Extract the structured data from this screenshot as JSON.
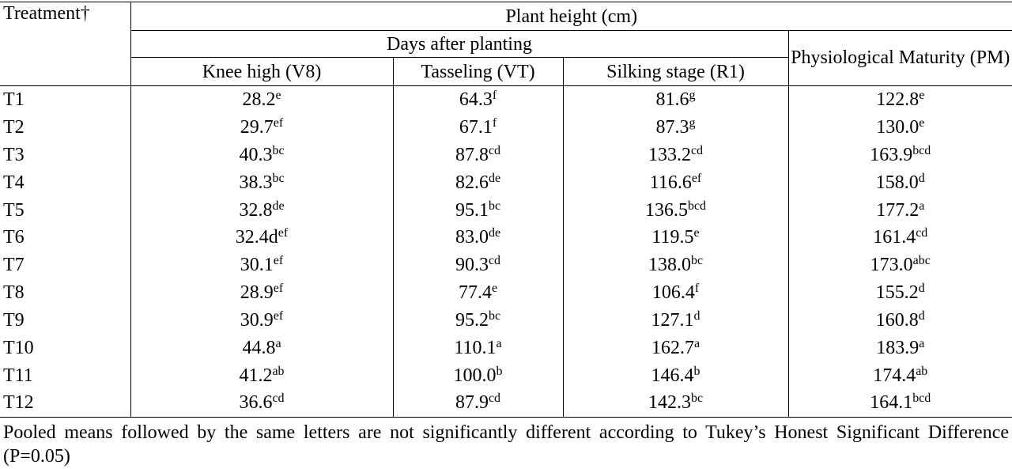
{
  "table": {
    "header": {
      "treatment": "Treatment†",
      "plant_height": "Plant height (cm)",
      "days_after_planting": "Days after planting",
      "columns": [
        "Knee high (V8)",
        "Tasseling (VT)",
        "Silking stage (R1)"
      ],
      "maturity": "Physiological Maturity (PM)"
    },
    "rows": [
      {
        "label": "T1",
        "cells": [
          [
            "28.2",
            "e"
          ],
          [
            "64.3",
            "f"
          ],
          [
            "81.6",
            "g"
          ],
          [
            "122.8",
            "e"
          ]
        ]
      },
      {
        "label": "T2",
        "cells": [
          [
            "29.7",
            "ef"
          ],
          [
            "67.1",
            "f"
          ],
          [
            "87.3",
            "g"
          ],
          [
            "130.0",
            "e"
          ]
        ]
      },
      {
        "label": "T3",
        "cells": [
          [
            "40.3",
            "bc"
          ],
          [
            "87.8",
            "cd"
          ],
          [
            "133.2",
            "cd"
          ],
          [
            "163.9",
            "bcd"
          ]
        ]
      },
      {
        "label": "T4",
        "cells": [
          [
            "38.3",
            "bc"
          ],
          [
            "82.6",
            "de"
          ],
          [
            "116.6",
            "ef"
          ],
          [
            "158.0",
            "d"
          ]
        ]
      },
      {
        "label": "T5",
        "cells": [
          [
            "32.8",
            "de"
          ],
          [
            "95.1",
            "bc"
          ],
          [
            "136.5",
            "bcd"
          ],
          [
            "177.2",
            "a"
          ]
        ]
      },
      {
        "label": "T6",
        "cells": [
          [
            "32.4d",
            "ef"
          ],
          [
            "83.0",
            "de"
          ],
          [
            "119.5",
            "e"
          ],
          [
            "161.4",
            "cd"
          ]
        ]
      },
      {
        "label": "T7",
        "cells": [
          [
            "30.1",
            "ef"
          ],
          [
            "90.3",
            "cd"
          ],
          [
            "138.0",
            "bc"
          ],
          [
            "173.0",
            "abc"
          ]
        ]
      },
      {
        "label": "T8",
        "cells": [
          [
            "28.9",
            "ef"
          ],
          [
            "77.4",
            "e"
          ],
          [
            "106.4",
            "f"
          ],
          [
            "155.2",
            "d"
          ]
        ]
      },
      {
        "label": "T9",
        "cells": [
          [
            "30.9",
            "ef"
          ],
          [
            "95.2",
            "bc"
          ],
          [
            "127.1",
            "d"
          ],
          [
            "160.8",
            "d"
          ]
        ]
      },
      {
        "label": "T10",
        "cells": [
          [
            "44.8",
            "a"
          ],
          [
            "110.1",
            "a"
          ],
          [
            "162.7",
            "a"
          ],
          [
            "183.9",
            "a"
          ]
        ]
      },
      {
        "label": "T11",
        "cells": [
          [
            "41.2",
            "ab"
          ],
          [
            "100.0",
            "b"
          ],
          [
            "146.4",
            "b"
          ],
          [
            "174.4",
            "ab"
          ]
        ]
      },
      {
        "label": "T12",
        "cells": [
          [
            "36.6",
            "cd"
          ],
          [
            "87.9",
            "cd"
          ],
          [
            "142.3",
            "bc"
          ],
          [
            "164.1",
            "bcd"
          ]
        ]
      }
    ],
    "footnote": "Pooled means followed by the same letters are not significantly different according to Tukey’s Honest Significant Difference (P=0.05)"
  }
}
